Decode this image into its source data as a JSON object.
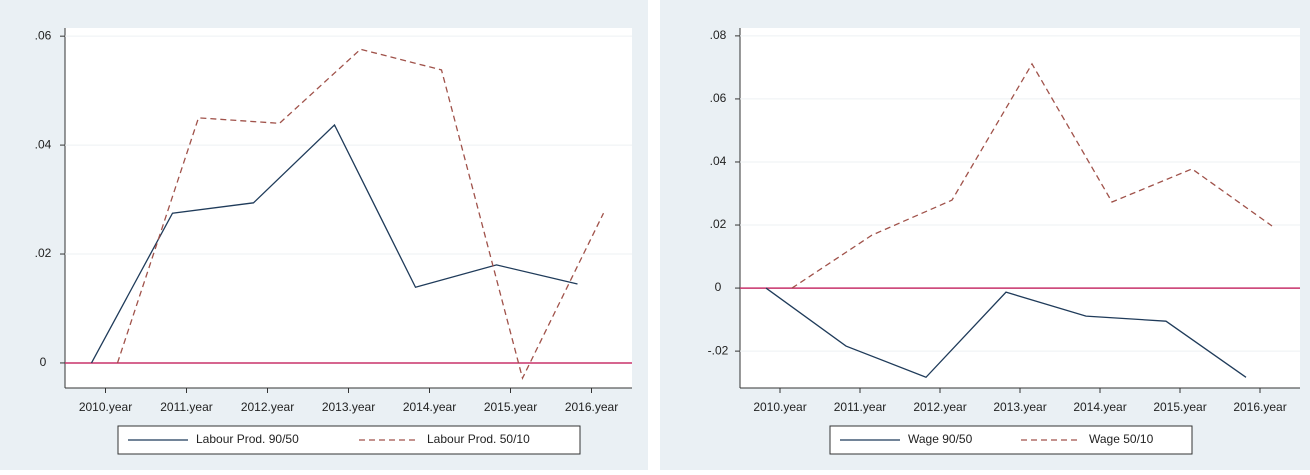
{
  "chart_data": [
    {
      "type": "line",
      "categories": [
        "2010.year",
        "2011.year",
        "2012.year",
        "2013.year",
        "2014.year",
        "2015.year",
        "2016.year"
      ],
      "series": [
        {
          "name": "Labour Prod. 90/50",
          "color": "#1f3b5a",
          "style": "solid",
          "values": [
            0,
            0.0275,
            0.0294,
            0.0437,
            0.0139,
            0.018,
            0.0145
          ]
        },
        {
          "name": "Labour Prod. 50/10",
          "color": "#a0524a",
          "style": "dashed",
          "values": [
            0,
            0.045,
            0.044,
            0.0576,
            0.0538,
            -0.0028,
            0.0275
          ]
        }
      ],
      "ylim": [
        -0.0046,
        0.0615
      ],
      "yticks": [
        0,
        {
          "value": 0.02,
          "label": ".02"
        },
        {
          "value": 0.04,
          "label": ".04"
        },
        {
          "value": 0.06,
          "label": ".06"
        }
      ],
      "reference_line": 0,
      "reference_color": "#c8326a",
      "legend": "bottom"
    },
    {
      "type": "line",
      "categories": [
        "2010.year",
        "2011.year",
        "2012.year",
        "2013.year",
        "2014.year",
        "2015.year",
        "2016.year"
      ],
      "series": [
        {
          "name": "Wage 90/50",
          "color": "#1f3b5a",
          "style": "solid",
          "values": [
            0,
            -0.0184,
            -0.0283,
            -0.0013,
            -0.0089,
            -0.0105,
            -0.0283
          ]
        },
        {
          "name": "Wage 50/10",
          "color": "#a0524a",
          "style": "dashed",
          "values": [
            0,
            0.0168,
            0.0279,
            0.0711,
            0.0273,
            0.0378,
            0.0197
          ]
        }
      ],
      "ylim": [
        -0.0317,
        0.0825
      ],
      "yticks": [
        {
          "value": -0.02,
          "label": "-.02"
        },
        0,
        {
          "value": 0.02,
          "label": ".02"
        },
        {
          "value": 0.04,
          "label": ".04"
        },
        {
          "value": 0.06,
          "label": ".06"
        },
        {
          "value": 0.08,
          "label": ".08"
        }
      ],
      "reference_line": 0,
      "reference_color": "#c8326a",
      "legend": "bottom"
    }
  ]
}
